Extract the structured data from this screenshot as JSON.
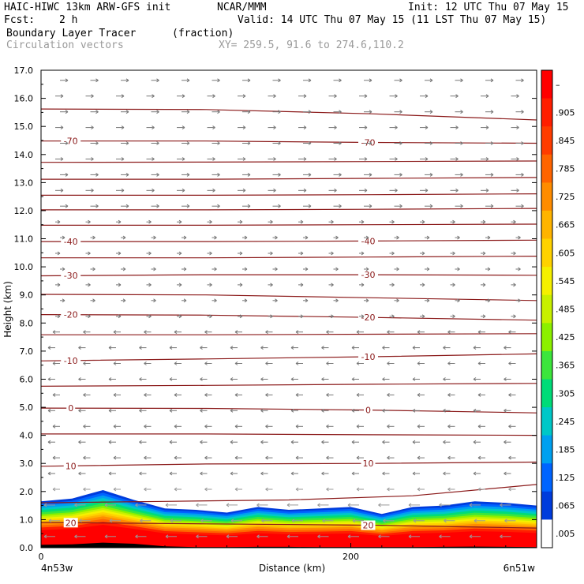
{
  "header": {
    "model": "HAIC-HIWC 13km ARW-GFS init",
    "org": "NCAR/MMM",
    "init": "Init: 12 UTC Thu 07 May 15",
    "fcst_label": "Fcst:",
    "fcst_value": "2 h",
    "valid": "Valid: 14 UTC Thu 07 May 15 (11 LST Thu 07 May 15)",
    "field": "Boundary Layer Tracer",
    "field_units": "(fraction)",
    "overlay": "Circulation vectors",
    "xy": "XY= 259.5, 91.6 to 274.6,110.2"
  },
  "chart_data": {
    "type": "cross-section",
    "ylabel": "Height (km)",
    "xlabel": "Distance (km)",
    "ylim": [
      0,
      17
    ],
    "yticks": [
      "0.0",
      "1.0",
      "2.0",
      "3.0",
      "4.0",
      "5.0",
      "6.0",
      "7.0",
      "8.0",
      "9.0",
      "10.0",
      "11.0",
      "12.0",
      "13.0",
      "14.0",
      "15.0",
      "16.0",
      "17.0"
    ],
    "xlim": [
      0,
      320
    ],
    "xticks": [
      {
        "x": 0,
        "label": "0"
      },
      {
        "x": 200,
        "label": "200"
      }
    ],
    "endpoint_left": "4n53w",
    "endpoint_right": "6n51w",
    "colorbar": {
      "labels": [
        "–",
        ".905",
        ".845",
        ".785",
        ".725",
        ".665",
        ".605",
        ".545",
        ".485",
        ".425",
        ".365",
        ".305",
        ".245",
        ".185",
        ".125",
        ".065",
        ".005"
      ],
      "colors": [
        "#ff0000",
        "#ff1e00",
        "#ff3c00",
        "#ff6400",
        "#ff8c00",
        "#ffb400",
        "#ffd200",
        "#f5f000",
        "#c8f000",
        "#8cf000",
        "#3ce63c",
        "#00dc78",
        "#00c8c8",
        "#00a0f0",
        "#0064ff",
        "#003cdc",
        "#ffffff"
      ]
    },
    "temperature_contours": [
      {
        "label": "-70",
        "y": [
          14.48,
          14.48,
          14.43,
          14.4
        ]
      },
      {
        "label": "-40",
        "y": [
          10.9,
          10.9,
          10.92,
          10.95
        ]
      },
      {
        "label": "-30",
        "y": [
          9.68,
          9.72,
          9.72,
          9.7
        ]
      },
      {
        "label": "-20",
        "y": [
          8.3,
          8.28,
          8.2,
          8.1
        ]
      },
      {
        "label": "-10",
        "y": [
          6.65,
          6.72,
          6.8,
          6.9
        ]
      },
      {
        "label": "0",
        "y": [
          4.97,
          4.96,
          4.9,
          4.8
        ]
      },
      {
        "label": "10",
        "y": [
          2.9,
          2.98,
          3.0,
          3.05
        ]
      },
      {
        "label": "20",
        "y": [
          0.9,
          0.85,
          0.8,
          0.7
        ]
      }
    ],
    "unlabeled_contours": [
      {
        "y": [
          15.62,
          15.6,
          15.45,
          15.23
        ]
      },
      {
        "y": [
          13.72,
          13.73,
          13.75,
          13.77
        ]
      },
      {
        "y": [
          13.12,
          13.12,
          13.15,
          13.18
        ]
      },
      {
        "y": [
          12.55,
          12.55,
          12.57,
          12.6
        ]
      },
      {
        "y": [
          12.03,
          12.03,
          12.05,
          12.08
        ]
      },
      {
        "y": [
          11.48,
          11.48,
          11.5,
          11.52
        ]
      },
      {
        "y": [
          10.32,
          10.32,
          10.35,
          10.38
        ]
      },
      {
        "y": [
          9.02,
          9.0,
          8.9,
          8.8
        ]
      },
      {
        "y": [
          7.58,
          7.58,
          7.6,
          7.62
        ]
      },
      {
        "y": [
          5.75,
          5.78,
          5.82,
          5.85
        ]
      },
      {
        "y": [
          4.05,
          4.05,
          4.02,
          4.0
        ]
      },
      {
        "y": [
          1.6,
          1.65,
          1.7,
          1.85,
          2.25
        ]
      }
    ],
    "tracer_top_km": [
      1.65,
      1.75,
      2.05,
      1.7,
      1.4,
      1.35,
      1.25,
      1.45,
      1.35,
      1.4,
      1.45,
      1.2,
      1.45,
      1.5,
      1.65,
      1.6,
      1.5
    ],
    "terrain_km": [
      0.1,
      0.12,
      0.18,
      0.14,
      0.05,
      0.02,
      0.02,
      0.03,
      0.03,
      0.02,
      0.02,
      0.02,
      0.02,
      0.03,
      0.04,
      0.03,
      0.02
    ]
  }
}
